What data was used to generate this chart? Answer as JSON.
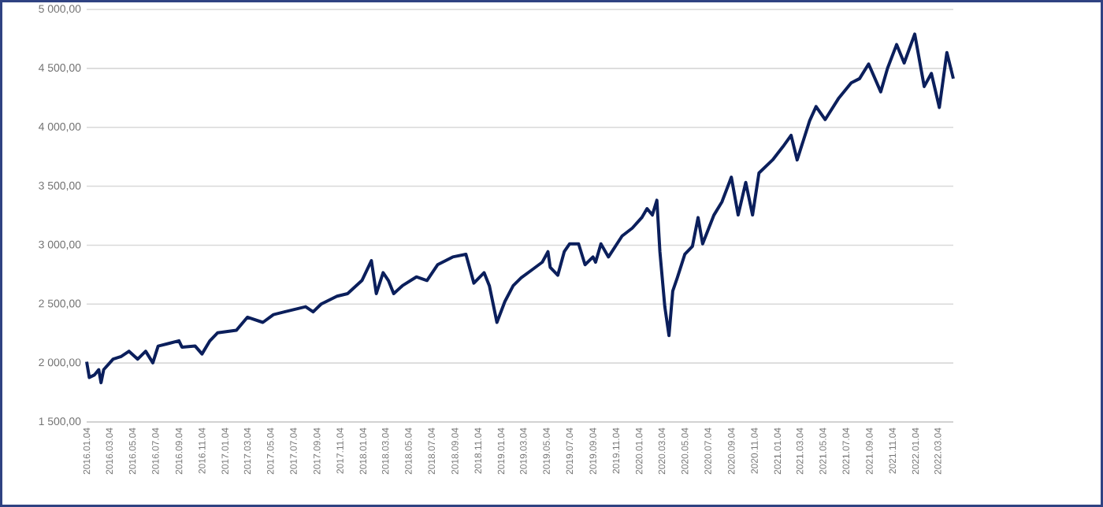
{
  "chart_data": {
    "type": "line",
    "x": [
      "2016-01-04",
      "2016-01-11",
      "2016-01-25",
      "2016-02-05",
      "2016-02-11",
      "2016-02-18",
      "2016-03-14",
      "2016-04-04",
      "2016-04-25",
      "2016-05-18",
      "2016-06-08",
      "2016-06-27",
      "2016-07-11",
      "2016-08-08",
      "2016-09-04",
      "2016-09-12",
      "2016-10-17",
      "2016-11-04",
      "2016-11-25",
      "2016-12-15",
      "2017-02-03",
      "2017-03-04",
      "2017-04-14",
      "2017-05-12",
      "2017-06-10",
      "2017-07-08",
      "2017-08-05",
      "2017-08-25",
      "2017-09-15",
      "2017-10-27",
      "2017-11-24",
      "2018-01-01",
      "2018-01-26",
      "2018-02-08",
      "2018-02-26",
      "2018-03-12",
      "2018-03-26",
      "2018-04-18",
      "2018-05-25",
      "2018-06-22",
      "2018-07-20",
      "2018-08-29",
      "2018-10-03",
      "2018-10-24",
      "2018-11-20",
      "2018-12-04",
      "2018-12-24",
      "2019-01-14",
      "2019-02-05",
      "2019-02-26",
      "2019-03-26",
      "2019-04-23",
      "2019-05-08",
      "2019-05-14",
      "2019-06-03",
      "2019-06-20",
      "2019-07-04",
      "2019-07-28",
      "2019-08-14",
      "2019-09-04",
      "2019-09-11",
      "2019-09-25",
      "2019-10-15",
      "2019-11-20",
      "2019-12-17",
      "2020-01-11",
      "2020-01-25",
      "2020-02-08",
      "2020-02-20",
      "2020-02-28",
      "2020-03-12",
      "2020-03-23",
      "2020-04-02",
      "2020-04-14",
      "2020-05-04",
      "2020-05-24",
      "2020-06-08",
      "2020-06-20",
      "2020-07-20",
      "2020-08-10",
      "2020-09-04",
      "2020-09-22",
      "2020-10-12",
      "2020-10-30",
      "2020-11-16",
      "2020-12-22",
      "2021-01-18",
      "2021-02-09",
      "2021-02-25",
      "2021-03-30",
      "2021-04-16",
      "2021-05-10",
      "2021-06-14",
      "2021-07-18",
      "2021-08-09",
      "2021-09-02",
      "2021-10-04",
      "2021-10-22",
      "2021-11-15",
      "2021-12-05",
      "2022-01-02",
      "2022-01-27",
      "2022-02-15",
      "2022-03-08",
      "2022-03-28",
      "2022-04-14"
    ],
    "series": [
      {
        "color": "#0b1f5c",
        "values": [
          2011,
          1877,
          1900,
          1944,
          1833,
          1944,
          2033,
          2055,
          2100,
          2033,
          2100,
          2002,
          2144,
          2166,
          2189,
          2135,
          2144,
          2077,
          2189,
          2256,
          2278,
          2389,
          2345,
          2411,
          2434,
          2456,
          2478,
          2434,
          2500,
          2567,
          2589,
          2700,
          2869,
          2589,
          2767,
          2700,
          2589,
          2656,
          2731,
          2700,
          2834,
          2900,
          2923,
          2678,
          2767,
          2656,
          2345,
          2522,
          2656,
          2723,
          2789,
          2856,
          2945,
          2811,
          2745,
          2945,
          3011,
          3011,
          2834,
          2900,
          2856,
          3011,
          2900,
          3078,
          3145,
          3234,
          3310,
          3256,
          3381,
          2945,
          2478,
          2233,
          2611,
          2723,
          2923,
          2990,
          3234,
          3011,
          3256,
          3367,
          3577,
          3256,
          3532,
          3256,
          3612,
          3723,
          3834,
          3932,
          3723,
          4056,
          4176,
          4065,
          4243,
          4377,
          4413,
          4537,
          4301,
          4501,
          4702,
          4546,
          4791,
          4346,
          4457,
          4168,
          4635,
          4413
        ]
      }
    ],
    "xlim": [
      "2016-01-04",
      "2022-04-14"
    ],
    "xticks": [
      {
        "value": "2016-01-04",
        "label": "2016.01.04"
      },
      {
        "value": "2016-03-04",
        "label": "2016.03.04"
      },
      {
        "value": "2016-05-04",
        "label": "2016.05.04"
      },
      {
        "value": "2016-07-04",
        "label": "2016.07.04"
      },
      {
        "value": "2016-09-04",
        "label": "2016.09.04"
      },
      {
        "value": "2016-11-04",
        "label": "2016.11.04"
      },
      {
        "value": "2017-01-04",
        "label": "2017.01.04"
      },
      {
        "value": "2017-03-04",
        "label": "2017.03.04"
      },
      {
        "value": "2017-05-04",
        "label": "2017.05.04"
      },
      {
        "value": "2017-07-04",
        "label": "2017.07.04"
      },
      {
        "value": "2017-09-04",
        "label": "2017.09.04"
      },
      {
        "value": "2017-11-04",
        "label": "2017.11.04"
      },
      {
        "value": "2018-01-04",
        "label": "2018.01.04"
      },
      {
        "value": "2018-03-04",
        "label": "2018.03.04"
      },
      {
        "value": "2018-05-04",
        "label": "2018.05.04"
      },
      {
        "value": "2018-07-04",
        "label": "2018.07.04"
      },
      {
        "value": "2018-09-04",
        "label": "2018.09.04"
      },
      {
        "value": "2018-11-04",
        "label": "2018.11.04"
      },
      {
        "value": "2019-01-04",
        "label": "2019.01.04"
      },
      {
        "value": "2019-03-04",
        "label": "2019.03.04"
      },
      {
        "value": "2019-05-04",
        "label": "2019.05.04"
      },
      {
        "value": "2019-07-04",
        "label": "2019.07.04"
      },
      {
        "value": "2019-09-04",
        "label": "2019.09.04"
      },
      {
        "value": "2019-11-04",
        "label": "2019.11.04"
      },
      {
        "value": "2020-01-04",
        "label": "2020.01.04"
      },
      {
        "value": "2020-03-04",
        "label": "2020.03.04"
      },
      {
        "value": "2020-05-04",
        "label": "2020.05.04"
      },
      {
        "value": "2020-07-04",
        "label": "2020.07.04"
      },
      {
        "value": "2020-09-04",
        "label": "2020.09.04"
      },
      {
        "value": "2020-11-04",
        "label": "2020.11.04"
      },
      {
        "value": "2021-01-04",
        "label": "2021.01.04"
      },
      {
        "value": "2021-03-04",
        "label": "2021.03.04"
      },
      {
        "value": "2021-05-04",
        "label": "2021.05.04"
      },
      {
        "value": "2021-07-04",
        "label": "2021.07.04"
      },
      {
        "value": "2021-09-04",
        "label": "2021.09.04"
      },
      {
        "value": "2021-11-04",
        "label": "2021.11.04"
      },
      {
        "value": "2022-01-04",
        "label": "2022.01.04"
      },
      {
        "value": "2022-03-04",
        "label": "2022.03.04"
      }
    ],
    "ylim": [
      1500,
      5000
    ],
    "yticks": [
      {
        "value": 1500,
        "label": "1 500,00"
      },
      {
        "value": 2000,
        "label": "2 000,00"
      },
      {
        "value": 2500,
        "label": "2 500,00"
      },
      {
        "value": 3000,
        "label": "3 000,00"
      },
      {
        "value": 3500,
        "label": "3 500,00"
      },
      {
        "value": 4000,
        "label": "4 000,00"
      },
      {
        "value": 4500,
        "label": "4 500,00"
      },
      {
        "value": 5000,
        "label": "5 000,00"
      }
    ],
    "grid": "y"
  }
}
